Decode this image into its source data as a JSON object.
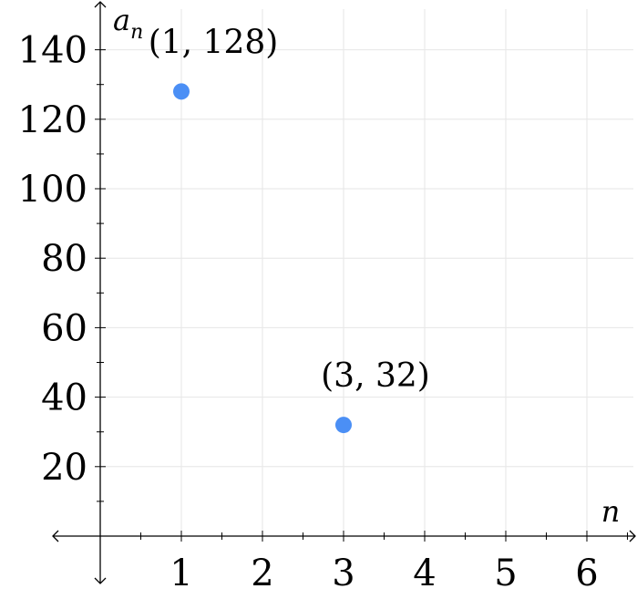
{
  "chart_data": {
    "type": "scatter",
    "title": "",
    "xlabel": "n",
    "ylabel": "a",
    "ylabel_sub": "n",
    "xlim": [
      -0.55,
      6.6
    ],
    "ylim": [
      -14,
      152
    ],
    "x_ticks": [
      1,
      2,
      3,
      4,
      5,
      6
    ],
    "x_tick_labels": [
      "1",
      "2",
      "3",
      "4",
      "5",
      "6"
    ],
    "y_ticks": [
      20,
      40,
      60,
      80,
      100,
      120,
      140
    ],
    "y_tick_labels": [
      "20",
      "40",
      "60",
      "80",
      "100",
      "120",
      "140"
    ],
    "x_minor_step": 0.5,
    "y_minor_step": 10,
    "grid": true,
    "point_color": "#4b8ff5",
    "points": [
      {
        "x": 1,
        "y": 128,
        "label": "(1, 128)"
      },
      {
        "x": 3,
        "y": 32,
        "label": "(3, 32)"
      }
    ]
  }
}
